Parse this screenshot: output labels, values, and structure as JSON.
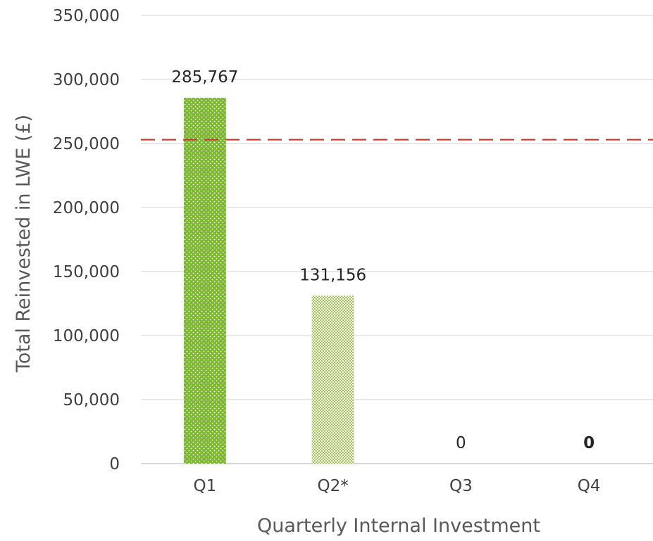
{
  "chart_data": {
    "type": "bar",
    "title": "",
    "xlabel": "Quarterly Internal Investment",
    "ylabel": "Total Reinvested in LWE (£)",
    "categories": [
      "Q1",
      "Q2*",
      "Q3",
      "Q4"
    ],
    "values": [
      285767,
      131156,
      0,
      0
    ],
    "data_labels": [
      "285,767",
      "131,156",
      "0",
      "0"
    ],
    "ylim": [
      0,
      350000
    ],
    "yticks": [
      0,
      50000,
      100000,
      150000,
      200000,
      250000,
      300000,
      350000
    ],
    "ytick_labels": [
      "0",
      "50,000",
      "100,000",
      "150,000",
      "200,000",
      "250,000",
      "300,000",
      "350,000"
    ],
    "reference_line": {
      "value": 253000,
      "style": "dashed",
      "color": "#C0392B"
    },
    "grid": true,
    "legend": "none",
    "colors": {
      "q1_bar": "#7CB82F",
      "q2_bar": "#B9DA7D",
      "gridline": "#D9D9D9",
      "axis": "#BFBFBF"
    }
  }
}
